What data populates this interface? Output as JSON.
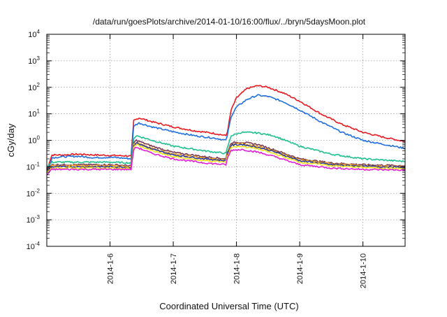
{
  "chart_data": {
    "type": "line",
    "title": "/data/run/goesPlots/archive/2014-01-10/16:00/flux/../bryn/5daysMoon.plot",
    "xlabel": "Coordinated Universal Time (UTC)",
    "ylabel": "cGy/day",
    "y_scale": "log",
    "ylim": [
      0.0001,
      10000
    ],
    "y_ticks": [
      {
        "base": "10",
        "exp": "-4",
        "value": 0.0001
      },
      {
        "base": "10",
        "exp": "-3",
        "value": 0.001
      },
      {
        "base": "10",
        "exp": "-2",
        "value": 0.01
      },
      {
        "base": "10",
        "exp": "-1",
        "value": 0.1
      },
      {
        "base": "10",
        "exp": "0",
        "value": 1
      },
      {
        "base": "10",
        "exp": "1",
        "value": 10
      },
      {
        "base": "10",
        "exp": "2",
        "value": 100
      },
      {
        "base": "10",
        "exp": "3",
        "value": 1000
      },
      {
        "base": "10",
        "exp": "4",
        "value": 10000
      }
    ],
    "xlim": [
      "2014-01-05 00:00",
      "2014-01-10 16:00"
    ],
    "x_ticks": [
      "2014-1-6",
      "2014-1-7",
      "2014-1-8",
      "2014-1-9",
      "2014-1-10"
    ],
    "grid": true,
    "legend": "none",
    "series": [
      {
        "color": "#e8191f",
        "x": [
          "2014-01-05 00:00",
          "2014-01-05 02:00",
          "2014-01-05 06:00",
          "2014-01-05 12:00",
          "2014-01-05 18:00",
          "2014-01-06 00:00",
          "2014-01-06 06:00",
          "2014-01-06 08:00",
          "2014-01-06 09:00",
          "2014-01-06 11:00",
          "2014-01-06 16:00",
          "2014-01-07 00:00",
          "2014-01-07 08:00",
          "2014-01-07 16:00",
          "2014-01-07 20:00",
          "2014-01-07 20:30",
          "2014-01-07 22:00",
          "2014-01-08 00:00",
          "2014-01-08 04:00",
          "2014-01-08 08:00",
          "2014-01-08 12:00",
          "2014-01-08 18:00",
          "2014-01-09 00:00",
          "2014-01-09 08:00",
          "2014-01-09 16:00",
          "2014-01-10 00:00",
          "2014-01-10 08:00",
          "2014-01-10 16:00"
        ],
        "y": [
          0.08,
          0.28,
          0.28,
          0.3,
          0.28,
          0.27,
          0.26,
          0.25,
          5.5,
          7,
          5,
          3.2,
          2.3,
          1.8,
          1.5,
          2,
          14,
          40,
          90,
          115,
          100,
          60,
          30,
          10,
          4,
          2,
          1.3,
          0.9
        ]
      },
      {
        "color": "#1f6fe0",
        "x": [
          "2014-01-05 00:00",
          "2014-01-05 02:00",
          "2014-01-05 06:00",
          "2014-01-05 12:00",
          "2014-01-05 18:00",
          "2014-01-06 00:00",
          "2014-01-06 06:00",
          "2014-01-06 08:00",
          "2014-01-06 09:00",
          "2014-01-06 11:00",
          "2014-01-06 16:00",
          "2014-01-07 00:00",
          "2014-01-07 08:00",
          "2014-01-07 16:00",
          "2014-01-07 20:00",
          "2014-01-07 20:30",
          "2014-01-07 22:00",
          "2014-01-08 00:00",
          "2014-01-08 04:00",
          "2014-01-08 08:00",
          "2014-01-08 12:00",
          "2014-01-08 18:00",
          "2014-01-09 00:00",
          "2014-01-09 08:00",
          "2014-01-09 16:00",
          "2014-01-10 00:00",
          "2014-01-10 08:00",
          "2014-01-10 16:00"
        ],
        "y": [
          0.06,
          0.22,
          0.24,
          0.25,
          0.22,
          0.23,
          0.21,
          0.2,
          3.5,
          4.5,
          3.2,
          2.1,
          1.5,
          1.2,
          1.0,
          1.5,
          8,
          18,
          35,
          50,
          45,
          28,
          14,
          5,
          2,
          1,
          0.7,
          0.5
        ]
      },
      {
        "color": "#1fc08f",
        "x": [
          "2014-01-05 00:00",
          "2014-01-05 02:00",
          "2014-01-05 12:00",
          "2014-01-06 00:00",
          "2014-01-06 08:00",
          "2014-01-06 09:00",
          "2014-01-06 10:00",
          "2014-01-06 16:00",
          "2014-01-07 00:00",
          "2014-01-07 12:00",
          "2014-01-07 20:00",
          "2014-01-07 20:30",
          "2014-01-07 22:00",
          "2014-01-08 02:00",
          "2014-01-08 08:00",
          "2014-01-08 14:00",
          "2014-01-09 00:00",
          "2014-01-09 12:00",
          "2014-01-10 00:00",
          "2014-01-10 16:00"
        ],
        "y": [
          0.1,
          0.15,
          0.15,
          0.15,
          0.14,
          1.2,
          1.5,
          1.0,
          0.6,
          0.4,
          0.32,
          0.5,
          1.5,
          2,
          1.9,
          1.5,
          0.6,
          0.3,
          0.2,
          0.16
        ]
      },
      {
        "color": "#7a3a52",
        "x": [
          "2014-01-05 00:00",
          "2014-01-05 02:00",
          "2014-01-05 12:00",
          "2014-01-06 00:00",
          "2014-01-06 08:00",
          "2014-01-06 09:00",
          "2014-01-06 10:00",
          "2014-01-06 16:00",
          "2014-01-07 00:00",
          "2014-01-07 12:00",
          "2014-01-07 20:00",
          "2014-01-07 20:30",
          "2014-01-07 22:00",
          "2014-01-08 02:00",
          "2014-01-08 08:00",
          "2014-01-08 14:00",
          "2014-01-09 00:00",
          "2014-01-09 12:00",
          "2014-01-10 00:00",
          "2014-01-10 16:00"
        ],
        "y": [
          0.08,
          0.12,
          0.12,
          0.12,
          0.11,
          0.8,
          1.0,
          0.6,
          0.35,
          0.24,
          0.2,
          0.35,
          0.8,
          0.85,
          0.7,
          0.45,
          0.2,
          0.14,
          0.12,
          0.11
        ]
      },
      {
        "color": "#f0a020",
        "x": [
          "2014-01-05 00:00",
          "2014-01-05 02:00",
          "2014-01-05 12:00",
          "2014-01-06 00:00",
          "2014-01-06 08:00",
          "2014-01-06 09:00",
          "2014-01-06 10:00",
          "2014-01-06 16:00",
          "2014-01-07 00:00",
          "2014-01-07 12:00",
          "2014-01-07 20:00",
          "2014-01-07 20:30",
          "2014-01-07 22:00",
          "2014-01-08 02:00",
          "2014-01-08 08:00",
          "2014-01-08 14:00",
          "2014-01-09 00:00",
          "2014-01-09 12:00",
          "2014-01-10 00:00",
          "2014-01-10 16:00"
        ],
        "y": [
          0.07,
          0.11,
          0.11,
          0.11,
          0.1,
          0.7,
          0.85,
          0.5,
          0.3,
          0.21,
          0.18,
          0.3,
          0.7,
          0.75,
          0.6,
          0.4,
          0.18,
          0.13,
          0.11,
          0.1
        ]
      },
      {
        "color": "#2a3aa0",
        "x": [
          "2014-01-05 00:00",
          "2014-01-05 02:00",
          "2014-01-05 12:00",
          "2014-01-06 00:00",
          "2014-01-06 08:00",
          "2014-01-06 09:00",
          "2014-01-06 10:00",
          "2014-01-06 16:00",
          "2014-01-07 00:00",
          "2014-01-07 12:00",
          "2014-01-07 20:00",
          "2014-01-07 20:30",
          "2014-01-07 22:00",
          "2014-01-08 02:00",
          "2014-01-08 08:00",
          "2014-01-08 14:00",
          "2014-01-09 00:00",
          "2014-01-09 12:00",
          "2014-01-10 00:00",
          "2014-01-10 16:00"
        ],
        "y": [
          0.07,
          0.1,
          0.1,
          0.1,
          0.095,
          0.65,
          0.8,
          0.46,
          0.28,
          0.2,
          0.17,
          0.28,
          0.65,
          0.7,
          0.55,
          0.38,
          0.17,
          0.12,
          0.105,
          0.095
        ]
      },
      {
        "color": "#f0e020",
        "x": [
          "2014-01-05 00:00",
          "2014-01-05 02:00",
          "2014-01-05 12:00",
          "2014-01-06 00:00",
          "2014-01-06 08:00",
          "2014-01-06 09:00",
          "2014-01-06 10:00",
          "2014-01-06 16:00",
          "2014-01-07 00:00",
          "2014-01-07 12:00",
          "2014-01-07 20:00",
          "2014-01-07 20:30",
          "2014-01-07 22:00",
          "2014-01-08 02:00",
          "2014-01-08 08:00",
          "2014-01-08 14:00",
          "2014-01-09 00:00",
          "2014-01-09 12:00",
          "2014-01-10 00:00",
          "2014-01-10 16:00"
        ],
        "y": [
          0.06,
          0.09,
          0.09,
          0.09,
          0.085,
          0.55,
          0.7,
          0.4,
          0.24,
          0.17,
          0.15,
          0.24,
          0.55,
          0.6,
          0.48,
          0.32,
          0.15,
          0.11,
          0.095,
          0.085
        ]
      },
      {
        "color": "#e01fd8",
        "x": [
          "2014-01-05 00:00",
          "2014-01-05 02:00",
          "2014-01-05 12:00",
          "2014-01-06 00:00",
          "2014-01-06 08:00",
          "2014-01-06 09:00",
          "2014-01-06 10:00",
          "2014-01-06 16:00",
          "2014-01-07 00:00",
          "2014-01-07 12:00",
          "2014-01-07 20:00",
          "2014-01-07 20:30",
          "2014-01-07 22:00",
          "2014-01-08 02:00",
          "2014-01-08 08:00",
          "2014-01-08 14:00",
          "2014-01-09 00:00",
          "2014-01-09 12:00",
          "2014-01-10 00:00",
          "2014-01-10 16:00"
        ],
        "y": [
          0.05,
          0.08,
          0.08,
          0.08,
          0.08,
          0.45,
          0.55,
          0.32,
          0.2,
          0.14,
          0.12,
          0.2,
          0.42,
          0.45,
          0.36,
          0.25,
          0.12,
          0.09,
          0.08,
          0.075
        ]
      }
    ]
  }
}
